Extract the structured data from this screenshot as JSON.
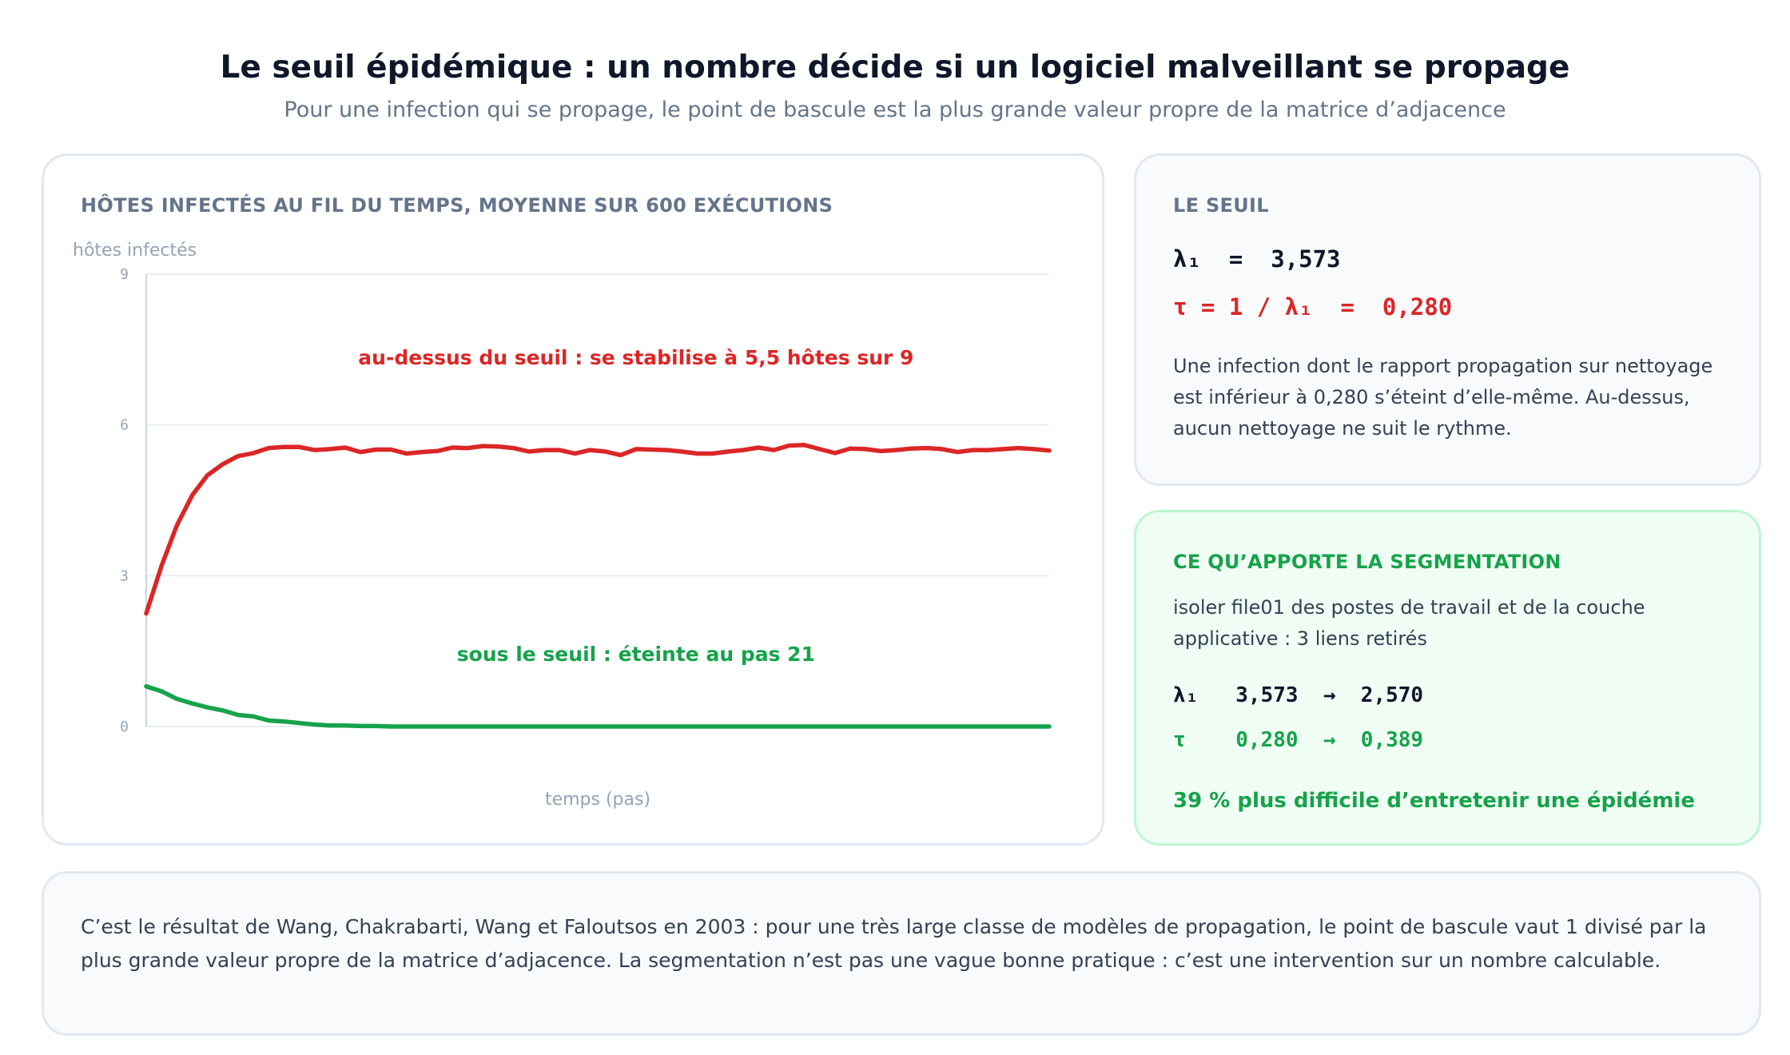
{
  "header": {
    "title": "Le seuil épidémique : un nombre décide si un logiciel malveillant se propage",
    "subtitle": "Pour une infection qui se propage, le point de bascule est la plus grande valeur propre de la matrice d’adjacence"
  },
  "colors": {
    "above": "#dc2626",
    "below": "#16a34a",
    "grid": "#e2e8f0",
    "axis": "#cbd5e1"
  },
  "chart_data": {
    "type": "line",
    "title": "HÔTES INFECTÉS AU FIL DU TEMPS, MOYENNE SUR 600 EXÉCUTIONS",
    "ylabel": "hôtes infectés",
    "xlabel": "temps (pas)",
    "ylim": [
      0,
      9
    ],
    "yticks": [
      "0",
      "3",
      "6",
      "9"
    ],
    "grid": true,
    "x": [
      0,
      1,
      2,
      3,
      4,
      5,
      6,
      7,
      8,
      9,
      10,
      11,
      12,
      13,
      14,
      15,
      16,
      17,
      18,
      19,
      20,
      21,
      22,
      23,
      24,
      25,
      26,
      27,
      28,
      29,
      30,
      31,
      32,
      33,
      34,
      35,
      36,
      37,
      38,
      39,
      40,
      41,
      42,
      43,
      44,
      45,
      46,
      47,
      48,
      49,
      50,
      51,
      52,
      53,
      54,
      55,
      56,
      57,
      58,
      59
    ],
    "series": [
      {
        "key": "above",
        "values": [
          2.25,
          3.2,
          4.0,
          4.6,
          5.0,
          5.22,
          5.38,
          5.44,
          5.54,
          5.56,
          5.56,
          5.5,
          5.52,
          5.55,
          5.46,
          5.51,
          5.51,
          5.43,
          5.46,
          5.48,
          5.55,
          5.54,
          5.58,
          5.57,
          5.54,
          5.47,
          5.5,
          5.5,
          5.43,
          5.5,
          5.47,
          5.4,
          5.52,
          5.51,
          5.5,
          5.47,
          5.43,
          5.43,
          5.47,
          5.5,
          5.55,
          5.5,
          5.59,
          5.6,
          5.52,
          5.44,
          5.53,
          5.52,
          5.48,
          5.5,
          5.53,
          5.54,
          5.52,
          5.46,
          5.5,
          5.5,
          5.52,
          5.54,
          5.52,
          5.49
        ]
      },
      {
        "key": "below",
        "values": [
          0.8,
          0.7,
          0.55,
          0.46,
          0.38,
          0.32,
          0.23,
          0.2,
          0.12,
          0.1,
          0.07,
          0.04,
          0.02,
          0.02,
          0.01,
          0.01,
          0.0,
          0.0,
          0.0,
          0.0,
          0.0,
          0.0,
          0.0,
          0.0,
          0.0,
          0.0,
          0.0,
          0.0,
          0.0,
          0.0,
          0.0,
          0.0,
          0.0,
          0.0,
          0.0,
          0.0,
          0.0,
          0.0,
          0.0,
          0.0,
          0.0,
          0.0,
          0.0,
          0.0,
          0.0,
          0.0,
          0.0,
          0.0,
          0.0,
          0.0,
          0.0,
          0.0,
          0.0,
          0.0,
          0.0,
          0.0,
          0.0,
          0.0,
          0.0,
          0.0
        ]
      }
    ],
    "annotations": [
      {
        "key": "above",
        "text": "au-dessus du seuil : se stabilise à 5,5 hôtes sur 9",
        "x": 32,
        "y": 7.2
      },
      {
        "key": "below",
        "text": "sous le seuil : éteinte au pas 21",
        "x": 32,
        "y": 1.3
      }
    ]
  },
  "seuil": {
    "heading": "LE SEUIL",
    "eq_lambda": "λ₁  =  3,573",
    "eq_tau": "τ = 1 / λ₁  =  0,280",
    "text": "Une infection dont le rapport propagation sur nettoyage est inférieur à 0,280 s’éteint d’elle-même. Au-dessus, aucun nettoyage ne suit le rythme."
  },
  "segmentation": {
    "heading": "CE QU’APPORTE LA SEGMENTATION",
    "text": "isoler file01 des postes de travail et de la couche applicative : 3 liens retirés",
    "lambda_line": "λ₁   3,573  →  2,570",
    "tau_line": "τ    0,280  →  0,389",
    "result": "39 % plus difficile d’entretenir une épidémie"
  },
  "footer": {
    "text": "C’est le résultat de Wang, Chakrabarti, Wang et Faloutsos en 2003 : pour une très large classe de modèles de propagation, le point de bascule vaut 1 divisé par la plus grande valeur propre de la matrice d’adjacence. La segmentation n’est pas une vague bonne pratique : c’est une intervention sur un nombre calculable."
  }
}
